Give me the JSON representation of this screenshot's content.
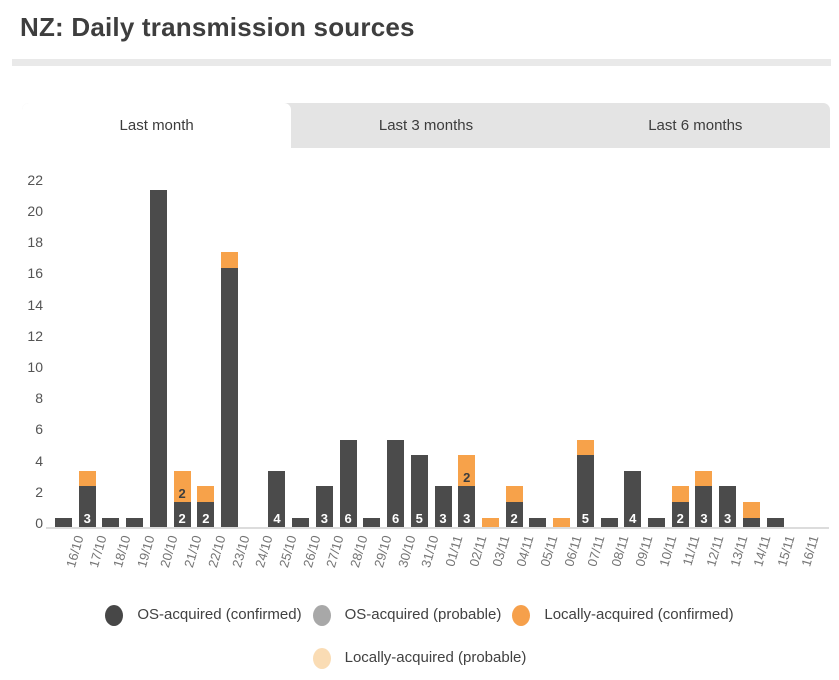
{
  "title": "NZ: Daily transmission sources",
  "tabs": [
    {
      "label": "Last month",
      "active": true
    },
    {
      "label": "Last 3 months",
      "active": false
    },
    {
      "label": "Last 6 months",
      "active": false
    }
  ],
  "chart_data": {
    "type": "bar",
    "stacked": true,
    "title": "NZ: Daily transmission sources",
    "xlabel": "",
    "ylabel": "",
    "ylim": [
      0,
      22
    ],
    "yticks": [
      0,
      2,
      4,
      6,
      8,
      10,
      12,
      14,
      16,
      18,
      20,
      22
    ],
    "grid": false,
    "legend_position": "bottom",
    "categories": [
      "16/10",
      "17/10",
      "18/10",
      "19/10",
      "20/10",
      "21/10",
      "22/10",
      "23/10",
      "24/10",
      "25/10",
      "26/10",
      "27/10",
      "28/10",
      "29/10",
      "30/10",
      "31/10",
      "01/11",
      "02/11",
      "03/11",
      "04/11",
      "05/11",
      "06/11",
      "07/11",
      "08/11",
      "09/11",
      "10/11",
      "11/11",
      "12/11",
      "13/11",
      "14/11",
      "15/11",
      "16/11"
    ],
    "series": [
      {
        "name": "OS-acquired (confirmed)",
        "color": "#4b4b4b",
        "values": [
          1,
          3,
          1,
          1,
          22,
          2,
          2,
          17,
          0,
          4,
          1,
          3,
          6,
          1,
          6,
          5,
          3,
          3,
          0,
          2,
          1,
          0,
          5,
          1,
          4,
          1,
          2,
          3,
          3,
          1,
          1,
          0
        ],
        "bar_labels": [
          "",
          "3",
          "",
          "",
          "",
          "2",
          "2",
          "",
          "",
          "4",
          "",
          "3",
          "6",
          "",
          "6",
          "5",
          "3",
          "3",
          "",
          "2",
          "",
          "",
          "5",
          "",
          "4",
          "",
          "2",
          "3",
          "3",
          "",
          "",
          ""
        ]
      },
      {
        "name": "OS-acquired (probable)",
        "color": "#a8a8a8",
        "values": [
          0,
          0,
          0,
          0,
          0,
          0,
          0,
          0,
          0,
          0,
          0,
          0,
          0,
          0,
          0,
          0,
          0,
          0,
          0,
          0,
          0,
          0,
          0,
          0,
          0,
          0,
          0,
          0,
          0,
          0,
          0,
          0
        ],
        "bar_labels": [
          "",
          "",
          "",
          "",
          "",
          "",
          "",
          "",
          "",
          "",
          "",
          "",
          "",
          "",
          "",
          "",
          "",
          "",
          "",
          "",
          "",
          "",
          "",
          "",
          "",
          "",
          "",
          "",
          "",
          "",
          "",
          ""
        ]
      },
      {
        "name": "Locally-acquired (confirmed)",
        "color": "#f7a24a",
        "values": [
          0,
          1,
          0,
          0,
          0,
          2,
          1,
          1,
          0,
          0,
          0,
          0,
          0,
          0,
          0,
          0,
          0,
          2,
          1,
          1,
          0,
          1,
          1,
          0,
          0,
          0,
          1,
          1,
          0,
          1,
          0,
          0
        ],
        "bar_labels": [
          "",
          "",
          "",
          "",
          "",
          "2",
          "",
          "",
          "",
          "",
          "",
          "",
          "",
          "",
          "",
          "",
          "",
          "2",
          "",
          "",
          "",
          "",
          "",
          "",
          "",
          "",
          "",
          "",
          "",
          "",
          "",
          ""
        ]
      },
      {
        "name": "Locally-acquired (probable)",
        "color": "#fadcb4",
        "values": [
          0,
          0,
          0,
          0,
          0,
          0,
          0,
          0,
          0,
          0,
          0,
          0,
          0,
          0,
          0,
          0,
          0,
          0,
          0,
          0,
          0,
          0,
          0,
          0,
          0,
          0,
          0,
          0,
          0,
          0,
          0,
          0
        ],
        "bar_labels": [
          "",
          "",
          "",
          "",
          "",
          "",
          "",
          "",
          "",
          "",
          "",
          "",
          "",
          "",
          "",
          "",
          "",
          "",
          "",
          "",
          "",
          "",
          "",
          "",
          "",
          "",
          "",
          "",
          "",
          "",
          "",
          ""
        ]
      }
    ]
  },
  "legend": {
    "items": [
      {
        "label": "OS-acquired (confirmed)",
        "color": "#474747"
      },
      {
        "label": "OS-acquired (probable)",
        "color": "#a8a8a8"
      },
      {
        "label": "Locally-acquired (confirmed)",
        "color": "#f6a04b"
      },
      {
        "label": "Locally-acquired (probable)",
        "color": "#fadcb4"
      }
    ]
  }
}
